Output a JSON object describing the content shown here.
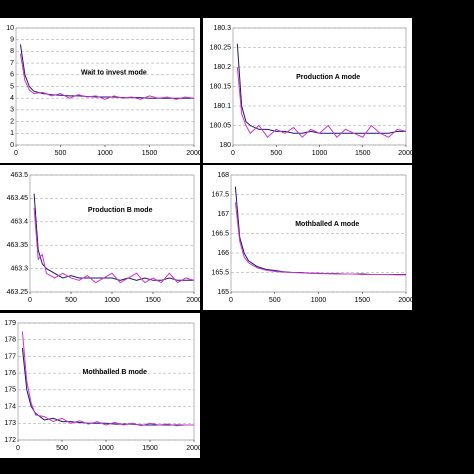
{
  "chart_data": [
    {
      "type": "line",
      "annotation": "Wait to invest mode",
      "x": [
        50,
        100,
        150,
        200,
        300,
        400,
        500,
        600,
        700,
        800,
        900,
        1000,
        1100,
        1200,
        1300,
        1400,
        1500,
        1600,
        1700,
        1800,
        1900,
        2000
      ],
      "series": [
        {
          "color": "#1a1a66",
          "values": [
            8.6,
            6.0,
            5.0,
            4.6,
            4.4,
            4.3,
            4.25,
            4.2,
            4.2,
            4.15,
            4.1,
            4.1,
            4.1,
            4.05,
            4.05,
            4.05,
            4.0,
            4.0,
            4.0,
            4.0,
            4.0,
            4.0
          ]
        },
        {
          "color": "#cc33cc",
          "values": [
            7.8,
            5.5,
            4.7,
            4.4,
            4.5,
            4.2,
            4.4,
            4.0,
            4.3,
            4.1,
            4.2,
            3.9,
            4.2,
            4.0,
            4.1,
            3.9,
            4.2,
            4.0,
            4.1,
            3.9,
            4.1,
            4.0
          ]
        }
      ],
      "xlim": [
        0,
        2000
      ],
      "xticks": [
        0,
        500,
        1000,
        1500,
        2000
      ],
      "ylim": [
        0,
        10
      ],
      "yticks": [
        0,
        1,
        2,
        3,
        4,
        5,
        6,
        7,
        8,
        9,
        10
      ],
      "grid": true
    },
    {
      "type": "line",
      "annotation": "Production A mode",
      "x": [
        50,
        100,
        150,
        200,
        300,
        400,
        500,
        600,
        700,
        800,
        900,
        1000,
        1100,
        1200,
        1300,
        1400,
        1500,
        1600,
        1700,
        1800,
        1900,
        2000
      ],
      "series": [
        {
          "color": "#1a1a66",
          "values": [
            180.26,
            180.1,
            180.06,
            180.05,
            180.04,
            180.04,
            180.035,
            180.035,
            180.03,
            180.03,
            180.035,
            180.03,
            180.03,
            180.03,
            180.03,
            180.03,
            180.03,
            180.03,
            180.03,
            180.03,
            180.035,
            180.035
          ]
        },
        {
          "color": "#cc33cc",
          "values": [
            180.2,
            180.08,
            180.05,
            180.03,
            180.05,
            180.02,
            180.04,
            180.03,
            180.045,
            180.02,
            180.04,
            180.03,
            180.05,
            180.02,
            180.04,
            180.03,
            180.02,
            180.05,
            180.03,
            180.02,
            180.04,
            180.035
          ]
        }
      ],
      "xlim": [
        0,
        2000
      ],
      "xticks": [
        0,
        500,
        1000,
        1500,
        2000
      ],
      "ylim": [
        180,
        180.3
      ],
      "yticks": [
        180,
        180.05,
        180.1,
        180.15,
        180.2,
        180.25,
        180.3
      ],
      "grid": true
    },
    {
      "type": "line",
      "annotation": "Production B mode",
      "x": [
        50,
        100,
        150,
        200,
        300,
        400,
        500,
        600,
        700,
        800,
        900,
        1000,
        1100,
        1200,
        1300,
        1400,
        1500,
        1600,
        1700,
        1800,
        1900,
        2000
      ],
      "series": [
        {
          "color": "#1a1a66",
          "values": [
            463.46,
            463.34,
            463.31,
            463.3,
            463.29,
            463.28,
            463.285,
            463.28,
            463.28,
            463.28,
            463.28,
            463.28,
            463.275,
            463.28,
            463.275,
            463.28,
            463.275,
            463.275,
            463.28,
            463.275,
            463.275,
            463.275
          ]
        },
        {
          "color": "#cc33cc",
          "values": [
            463.43,
            463.32,
            463.33,
            463.29,
            463.28,
            463.29,
            463.28,
            463.275,
            463.285,
            463.27,
            463.28,
            463.29,
            463.27,
            463.28,
            463.29,
            463.27,
            463.28,
            463.27,
            463.29,
            463.27,
            463.28,
            463.275
          ]
        }
      ],
      "xlim": [
        0,
        2000
      ],
      "xticks": [
        0,
        500,
        1000,
        1500,
        2000
      ],
      "ylim": [
        463.25,
        463.5
      ],
      "yticks": [
        463.25,
        463.3,
        463.35,
        463.4,
        463.45,
        463.5
      ],
      "grid": true
    },
    {
      "type": "line",
      "annotation": "Mothballed A mode",
      "x": [
        50,
        100,
        150,
        200,
        300,
        400,
        500,
        600,
        700,
        800,
        900,
        1000,
        1100,
        1200,
        1300,
        1400,
        1500,
        1600,
        1700,
        1800,
        1900,
        2000
      ],
      "series": [
        {
          "color": "#1a1a66",
          "values": [
            167.7,
            166.4,
            166.0,
            165.8,
            165.65,
            165.58,
            165.55,
            165.52,
            165.5,
            165.5,
            165.48,
            165.48,
            165.47,
            165.47,
            165.46,
            165.46,
            165.46,
            165.45,
            165.45,
            165.45,
            165.45,
            165.45
          ]
        },
        {
          "color": "#cc33cc",
          "values": [
            167.3,
            166.3,
            165.9,
            165.75,
            165.62,
            165.56,
            165.53,
            165.51,
            165.5,
            165.49,
            165.48,
            165.47,
            165.47,
            165.46,
            165.46,
            165.46,
            165.45,
            165.45,
            165.45,
            165.45,
            165.44,
            165.44
          ]
        }
      ],
      "xlim": [
        0,
        2000
      ],
      "xticks": [
        0,
        500,
        1000,
        1500,
        2000
      ],
      "ylim": [
        165,
        168
      ],
      "yticks": [
        165,
        165.5,
        166,
        166.5,
        167,
        167.5,
        168
      ],
      "grid": true
    },
    {
      "type": "line",
      "annotation": "Mothballed B mode",
      "x": [
        50,
        100,
        150,
        200,
        300,
        400,
        500,
        600,
        700,
        800,
        900,
        1000,
        1100,
        1200,
        1300,
        1400,
        1500,
        1600,
        1700,
        1800,
        1900,
        2000
      ],
      "series": [
        {
          "color": "#1a1a66",
          "values": [
            177.5,
            175.0,
            174.0,
            173.6,
            173.2,
            173.3,
            173.1,
            173.1,
            173.05,
            173.0,
            173.0,
            173.0,
            172.95,
            172.95,
            172.95,
            172.9,
            172.9,
            172.9,
            172.9,
            172.9,
            172.9,
            172.9
          ]
        },
        {
          "color": "#cc33cc",
          "values": [
            178.5,
            175.5,
            174.2,
            173.5,
            173.4,
            173.1,
            173.3,
            173.0,
            173.15,
            172.95,
            173.1,
            172.9,
            173.05,
            172.9,
            173.0,
            172.85,
            173.0,
            172.9,
            172.95,
            172.85,
            172.9,
            172.9
          ]
        }
      ],
      "xlim": [
        0,
        2000
      ],
      "xticks": [
        0,
        500,
        1000,
        1500,
        2000
      ],
      "ylim": [
        172,
        179
      ],
      "yticks": [
        172,
        173,
        174,
        175,
        176,
        177,
        178,
        179
      ],
      "grid": true
    }
  ]
}
